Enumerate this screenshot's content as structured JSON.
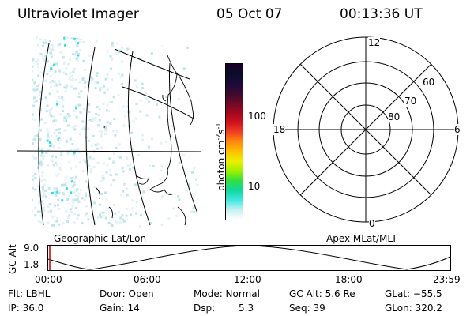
{
  "header": {
    "title": "Ultraviolet Imager",
    "date": "05 Oct 07",
    "time": "00:13:36 UT"
  },
  "colorbar": {
    "label": "photon cm",
    "exp1": "-2",
    "mid": "s",
    "exp2": "-1",
    "ticks": [
      "100",
      "10"
    ],
    "colors": [
      "#1a0028",
      "#0b0d28",
      "#1a0a3a",
      "#3a0a30",
      "#6a0a28",
      "#a00820",
      "#d01020",
      "#f04020",
      "#ff8a10",
      "#ffc000",
      "#eaf000",
      "#a0f000",
      "#30e040",
      "#10d8a0",
      "#40e8e0",
      "#c8f0f0",
      "#ffffff"
    ]
  },
  "left_map": {
    "caption": "Geographic Lat/Lon"
  },
  "right_polar": {
    "caption": "Apex MLat/MLT",
    "labels": {
      "top": "12",
      "left": "18",
      "right": "6",
      "bottom": "0",
      "r60": "60",
      "r70": "70",
      "r80": "80"
    }
  },
  "altitude_plot": {
    "ylabel": "GC Alt",
    "yticks": [
      "9.0",
      "1.8"
    ],
    "xticks": [
      "00:00",
      "06:00",
      "12:00",
      "18:00",
      "23:59"
    ]
  },
  "info": {
    "flt": "Flt: LBHL",
    "ip": "IP: 36.0",
    "door": "Door: Open",
    "gain": "Gain: 14",
    "mode": "Mode: Normal",
    "dsp_label": "Dsp:",
    "dsp_value": "5.3",
    "gcalt": "GC Alt: 5.6 Re",
    "seq": "Seq: 39",
    "glat": "GLat: −55.5",
    "glon": "GLon: 320.2"
  }
}
